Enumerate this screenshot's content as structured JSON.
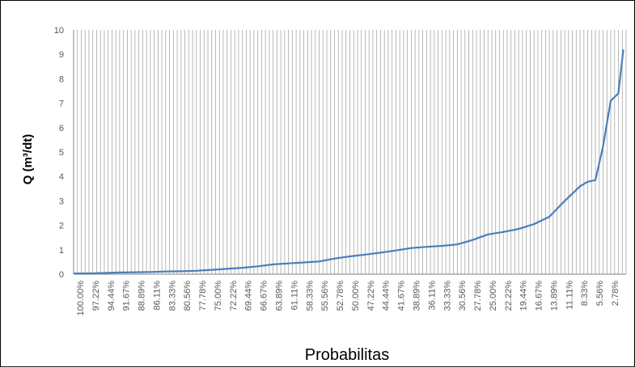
{
  "chart_data": {
    "type": "line",
    "title": "",
    "xlabel": "Probabilitas",
    "ylabel": "Q (m³/dt)",
    "ylim": [
      0,
      10
    ],
    "y_ticks": [
      "0",
      "1",
      "2",
      "3",
      "4",
      "5",
      "6",
      "7",
      "8",
      "9",
      "10"
    ],
    "x_tick_labels": [
      "100.00%",
      "97.22%",
      "94.44%",
      "91.67%",
      "88.89%",
      "86.11%",
      "83.33%",
      "80.56%",
      "77.78%",
      "75.00%",
      "72.22%",
      "69.44%",
      "66.67%",
      "63.89%",
      "61.11%",
      "58.33%",
      "55.56%",
      "52.78%",
      "50.00%",
      "47.22%",
      "44.44%",
      "41.67%",
      "38.89%",
      "36.11%",
      "33.33%",
      "30.56%",
      "27.78%",
      "25.00%",
      "22.22%",
      "19.44%",
      "16.67%",
      "13.89%",
      "11.11%",
      "8.33%",
      "5.56%",
      "2.78%"
    ],
    "grid": "dense vertical gridlines",
    "legend": "none",
    "series": [
      {
        "color": "#4a7ebb",
        "x": [
          100.0,
          97.22,
          94.44,
          91.67,
          88.89,
          86.11,
          83.33,
          80.56,
          77.78,
          75.0,
          72.22,
          69.44,
          66.67,
          63.89,
          61.11,
          58.33,
          55.56,
          52.78,
          50.0,
          47.22,
          44.44,
          41.67,
          38.89,
          36.11,
          33.33,
          30.56,
          27.78,
          25.0,
          22.22,
          19.44,
          16.67,
          13.89,
          11.11,
          8.33,
          7.0,
          5.56,
          4.2,
          2.78,
          1.4,
          0.5
        ],
        "y": [
          0.03,
          0.03,
          0.05,
          0.07,
          0.08,
          0.09,
          0.11,
          0.12,
          0.14,
          0.18,
          0.22,
          0.26,
          0.32,
          0.4,
          0.44,
          0.48,
          0.52,
          0.64,
          0.73,
          0.8,
          0.88,
          0.97,
          1.07,
          1.12,
          1.16,
          1.22,
          1.4,
          1.63,
          1.73,
          1.85,
          2.05,
          2.35,
          3.0,
          3.6,
          3.78,
          3.85,
          5.2,
          7.1,
          7.4,
          9.2
        ]
      }
    ]
  }
}
